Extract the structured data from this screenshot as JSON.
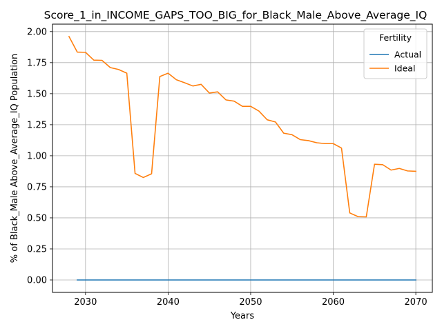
{
  "chart_data": {
    "type": "line",
    "title": "Score_1_in_INCOME_GAPS_TOO_BIG_for_Black_Male_Above_Average_IQ",
    "xlabel": "Years",
    "ylabel": "% of Black_Male Above_Average_IQ Population",
    "xlim": [
      2026,
      2072
    ],
    "ylim": [
      -0.1,
      2.06
    ],
    "xticks": [
      2030,
      2040,
      2050,
      2060,
      2070
    ],
    "yticks": [
      0.0,
      0.25,
      0.5,
      0.75,
      1.0,
      1.25,
      1.5,
      1.75,
      2.0
    ],
    "ytick_labels": [
      "0.00",
      "0.25",
      "0.50",
      "0.75",
      "1.00",
      "1.25",
      "1.50",
      "1.75",
      "2.00"
    ],
    "grid": true,
    "legend": {
      "title": "Fertility",
      "placement": "top-right"
    },
    "series": [
      {
        "name": "Actual",
        "color": "#1f77b4",
        "x": [
          2029,
          2030,
          2031,
          2032,
          2033,
          2034,
          2035,
          2036,
          2037,
          2038,
          2039,
          2040,
          2041,
          2042,
          2043,
          2044,
          2045,
          2046,
          2047,
          2048,
          2049,
          2050,
          2051,
          2052,
          2053,
          2054,
          2055,
          2056,
          2057,
          2058,
          2059,
          2060,
          2061,
          2062,
          2063,
          2064,
          2065,
          2066,
          2067,
          2068,
          2069,
          2070
        ],
        "y": [
          0,
          0,
          0,
          0,
          0,
          0,
          0,
          0,
          0,
          0,
          0,
          0,
          0,
          0,
          0,
          0,
          0,
          0,
          0,
          0,
          0,
          0,
          0,
          0,
          0,
          0,
          0,
          0,
          0,
          0,
          0,
          0,
          0,
          0,
          0,
          0,
          0,
          0,
          0,
          0,
          0,
          0
        ]
      },
      {
        "name": "Ideal",
        "color": "#ff7f0e",
        "x": [
          2028,
          2029,
          2030,
          2031,
          2032,
          2033,
          2034,
          2035,
          2036,
          2037,
          2038,
          2039,
          2040,
          2041,
          2042,
          2043,
          2044,
          2045,
          2046,
          2047,
          2048,
          2049,
          2050,
          2051,
          2052,
          2053,
          2054,
          2055,
          2056,
          2057,
          2058,
          2059,
          2060,
          2061,
          2062,
          2063,
          2064,
          2065,
          2066,
          2067,
          2068,
          2069,
          2070
        ],
        "y": [
          1.96,
          1.835,
          1.833,
          1.77,
          1.768,
          1.71,
          1.695,
          1.665,
          0.858,
          0.825,
          0.855,
          1.638,
          1.665,
          1.612,
          1.588,
          1.562,
          1.575,
          1.505,
          1.515,
          1.45,
          1.44,
          1.398,
          1.398,
          1.36,
          1.29,
          1.272,
          1.182,
          1.17,
          1.13,
          1.122,
          1.105,
          1.098,
          1.098,
          1.062,
          0.54,
          0.51,
          0.508,
          0.932,
          0.928,
          0.885,
          0.898,
          0.878,
          0.875
        ]
      }
    ]
  }
}
